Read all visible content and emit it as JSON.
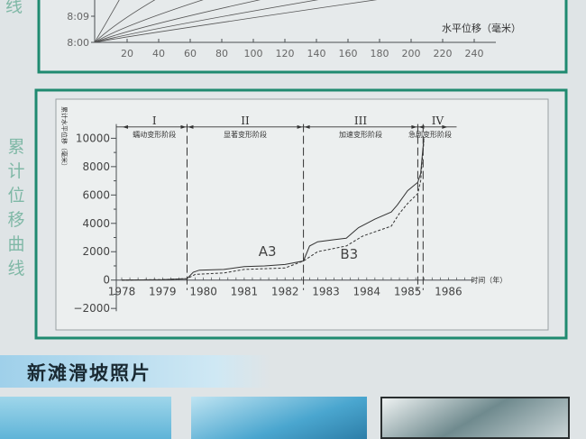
{
  "side_title": "累计位移曲线",
  "side_top_fragment": "线",
  "top_chart": {
    "type": "line",
    "xlabel": "水平位移（毫米）",
    "y_ticks": [
      "8:09",
      "8:00"
    ],
    "x_ticks": [
      "20",
      "40",
      "60",
      "80",
      "100",
      "120",
      "140",
      "160",
      "180",
      "200",
      "220",
      "240"
    ]
  },
  "chart_data": {
    "type": "line",
    "ylabel": "累计水平位移（毫米）",
    "xlabel": "时间（年）",
    "xlim": [
      1978,
      1986
    ],
    "ylim": [
      -2000,
      11000
    ],
    "x_ticks": [
      "1978",
      "1979",
      "1980",
      "1981",
      "1982",
      "1983",
      "1984",
      "1985",
      "1986"
    ],
    "y_ticks": [
      "10000",
      "8000",
      "6000",
      "4000",
      "2000",
      "0",
      "-2000"
    ],
    "stages": [
      {
        "numeral": "I",
        "label": "蠕动变形阶段",
        "from": 1978,
        "to": 1979.6
      },
      {
        "numeral": "II",
        "label": "显著变形阶段",
        "from": 1979.6,
        "to": 1982.45
      },
      {
        "numeral": "III",
        "label": "加速变形阶段",
        "from": 1982.45,
        "to": 1985.25
      },
      {
        "numeral": "IV",
        "label": "急剧变形阶段",
        "from": 1985.25,
        "to": 1986
      }
    ],
    "stage_boundaries": [
      1979.6,
      1982.45,
      1985.25,
      1985.38
    ],
    "annotations": [
      "A3",
      "B3"
    ],
    "series": [
      {
        "style": "solid",
        "x": [
          1978,
          1979,
          1979.6,
          1979.75,
          1979.9,
          1980.5,
          1981,
          1981.5,
          1982,
          1982.45,
          1982.6,
          1982.8,
          1983.2,
          1983.5,
          1983.8,
          1984.2,
          1984.6,
          1984.75,
          1985,
          1985.25,
          1985.32,
          1985.36,
          1985.4
        ],
        "y": [
          0,
          30,
          100,
          550,
          700,
          750,
          950,
          1000,
          1100,
          1350,
          2400,
          2700,
          2850,
          2950,
          3700,
          4300,
          4800,
          5300,
          6300,
          6900,
          7500,
          8800,
          10000
        ]
      },
      {
        "style": "dashed",
        "x": [
          1978,
          1979,
          1979.6,
          1979.8,
          1980.5,
          1981,
          1981.5,
          1982,
          1982.45,
          1982.8,
          1983.5,
          1983.9,
          1984.3,
          1984.6,
          1984.8,
          1985,
          1985.25,
          1985.32,
          1985.36,
          1985.4
        ],
        "y": [
          0,
          30,
          100,
          400,
          500,
          750,
          800,
          850,
          1350,
          2000,
          2400,
          3100,
          3500,
          3800,
          4700,
          5400,
          6100,
          7000,
          8500,
          9800
        ]
      }
    ],
    "grid": false
  },
  "photos_banner": "新滩滑坡照片",
  "colors": {
    "frame": "#1f8a70",
    "side_text": "#7fb8a6",
    "banner": "#9fd0ea"
  }
}
